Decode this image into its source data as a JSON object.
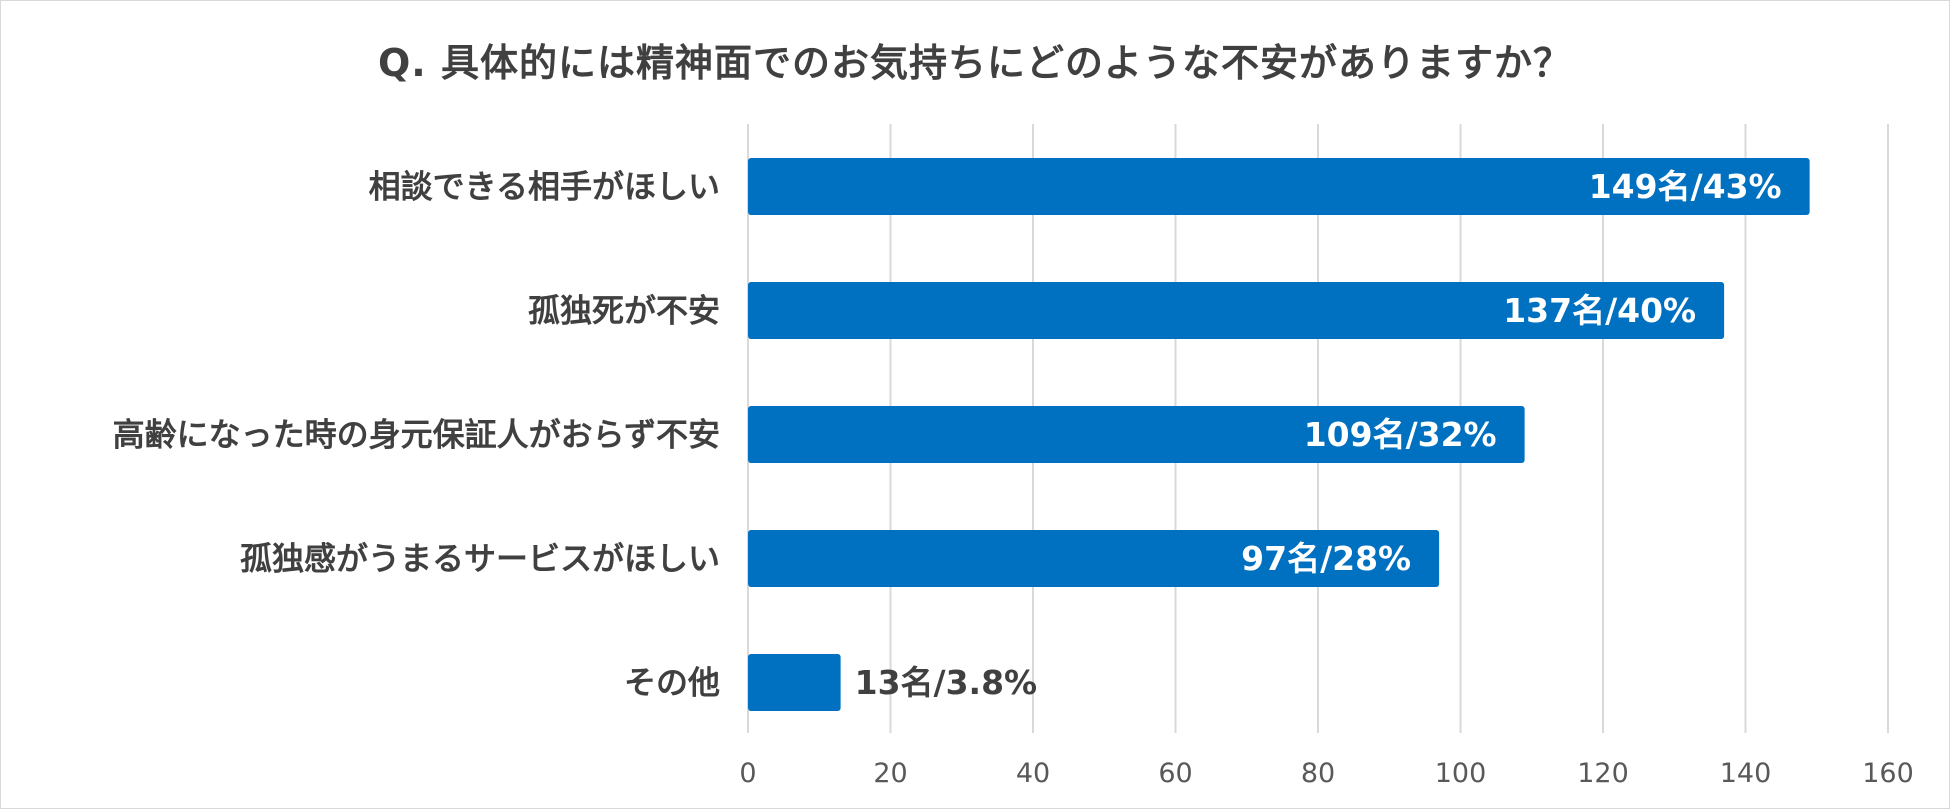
{
  "chart_data": {
    "type": "bar",
    "orientation": "horizontal",
    "title": "Q. 具体的には精神面でのお気持ちにどのような不安がありますか？",
    "categories": [
      "相談できる相手がほしい",
      "孤独死が不安",
      "高齢になった時の身元保証人がおらず不安",
      "孤独感がうまるサービスがほしい",
      "その他"
    ],
    "values": [
      149,
      137,
      109,
      97,
      13
    ],
    "data_labels": [
      "149名/43%",
      "137名/40%",
      "109名/32%",
      "97名/28%",
      "13名/3.8%"
    ],
    "xlim": [
      0,
      160
    ],
    "xticks": [
      0,
      20,
      40,
      60,
      80,
      100,
      120,
      140,
      160
    ],
    "grid": true,
    "legend": "none",
    "colors": {
      "bar": "#0070C0",
      "grid": "#d9d9d9",
      "label_inside": "#ffffff",
      "label_outside": "#404040"
    }
  }
}
